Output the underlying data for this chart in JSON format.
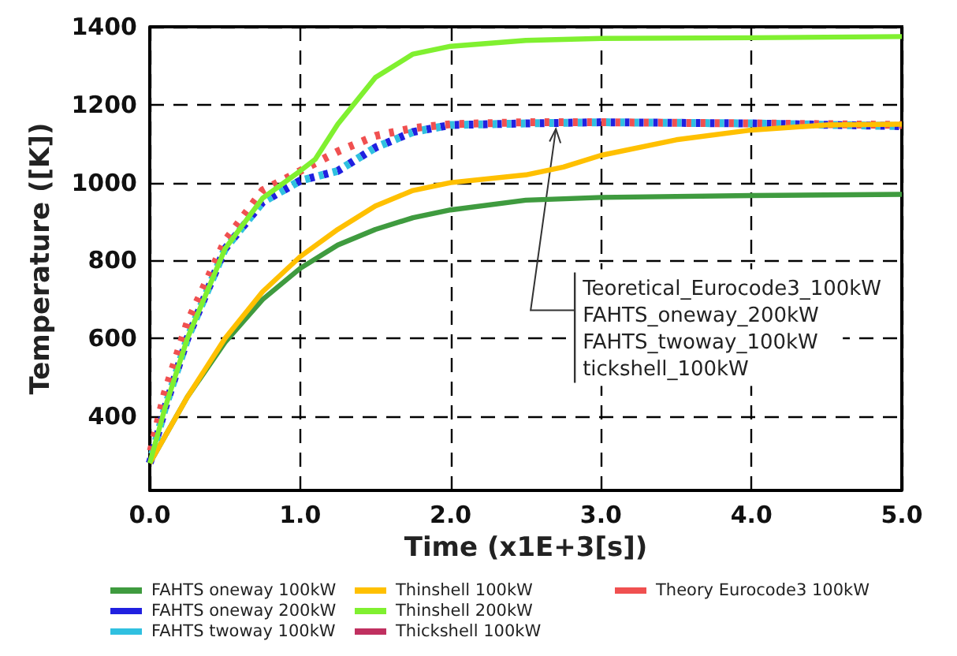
{
  "chart_data": {
    "type": "line",
    "xlabel": "Time (x1E+3[s])",
    "ylabel": "Temperature ([K])",
    "xlim": [
      0,
      5
    ],
    "xticks": [
      {
        "value": 0,
        "label": "0.0"
      },
      {
        "value": 1,
        "label": "1.0"
      },
      {
        "value": 2,
        "label": "2.0"
      },
      {
        "value": 3,
        "label": "3.0"
      },
      {
        "value": 4,
        "label": "4.0"
      },
      {
        "value": 5,
        "label": "5.0"
      }
    ],
    "ylim": [
      210,
      1400
    ],
    "yticks": [
      400,
      600,
      800,
      1000,
      1200,
      1400
    ],
    "grid": true,
    "legend": "bottom",
    "marker": "none",
    "annotations": [
      {
        "text": "Teoretical_Eurocode3_100kW\nFAHTS_oneway_200kW\nFAHTS_twoway_100kW\ntickshell_100kW",
        "x": 2.7,
        "y": 1150
      }
    ],
    "series": [
      {
        "name": "FAHTS oneway 100kW",
        "color": "#3f9b3f",
        "line_style": "solid",
        "x": [
          0,
          0.25,
          0.5,
          0.75,
          1.0,
          1.25,
          1.5,
          1.75,
          2.0,
          2.5,
          3.0,
          4.0,
          5.0
        ],
        "values": [
          280,
          450,
          590,
          700,
          780,
          840,
          880,
          910,
          930,
          955,
          962,
          967,
          970
        ]
      },
      {
        "name": "FAHTS oneway 200kW",
        "color": "#2020e0",
        "line_style": "dotted",
        "x": [
          0,
          0.1,
          0.25,
          0.5,
          0.75,
          1.0,
          1.25,
          1.5,
          1.75,
          2.0,
          2.5,
          3.0,
          4.0,
          5.0
        ],
        "values": [
          280,
          420,
          600,
          830,
          950,
          1005,
          1030,
          1090,
          1130,
          1148,
          1152,
          1155,
          1152,
          1145
        ]
      },
      {
        "name": "FAHTS twoway 100kW",
        "color": "#30c0e0",
        "line_style": "dotted",
        "x": [
          0,
          0.1,
          0.25,
          0.5,
          0.75,
          1.0,
          1.25,
          1.5,
          1.75,
          2.0,
          2.5,
          3.0,
          4.0,
          5.0
        ],
        "values": [
          280,
          420,
          600,
          830,
          950,
          1005,
          1030,
          1090,
          1130,
          1148,
          1152,
          1155,
          1152,
          1145
        ]
      },
      {
        "name": "Thinshell 100kW",
        "color": "#ffc000",
        "line_style": "solid",
        "x": [
          0,
          0.25,
          0.5,
          0.75,
          1.0,
          1.25,
          1.5,
          1.75,
          2.0,
          2.5,
          2.75,
          3.0,
          3.5,
          4.0,
          4.5,
          5.0
        ],
        "values": [
          280,
          450,
          600,
          720,
          810,
          880,
          940,
          980,
          1000,
          1020,
          1040,
          1070,
          1110,
          1135,
          1148,
          1150
        ]
      },
      {
        "name": "Thinshell 200kW",
        "color": "#80f030",
        "line_style": "solid",
        "x": [
          0,
          0.1,
          0.25,
          0.5,
          0.75,
          1.0,
          1.1,
          1.25,
          1.5,
          1.75,
          2.0,
          2.5,
          3.0,
          4.0,
          5.0
        ],
        "values": [
          280,
          420,
          600,
          830,
          960,
          1030,
          1060,
          1150,
          1270,
          1330,
          1350,
          1365,
          1370,
          1372,
          1375
        ]
      },
      {
        "name": "Thickshell 100kW",
        "color": "#c03060",
        "line_style": "solid",
        "values": [
          null
        ]
      },
      {
        "name": "Theory Eurocode3 100kW",
        "color": "#f05050",
        "line_style": "dotted",
        "x": [
          0,
          0.1,
          0.25,
          0.5,
          0.75,
          1.0,
          1.25,
          1.5,
          1.75,
          2.0,
          2.5,
          3.0,
          4.0,
          5.0
        ],
        "values": [
          300,
          460,
          640,
          850,
          980,
          1030,
          1080,
          1120,
          1140,
          1150,
          1155,
          1155,
          1152,
          1148
        ]
      }
    ]
  }
}
